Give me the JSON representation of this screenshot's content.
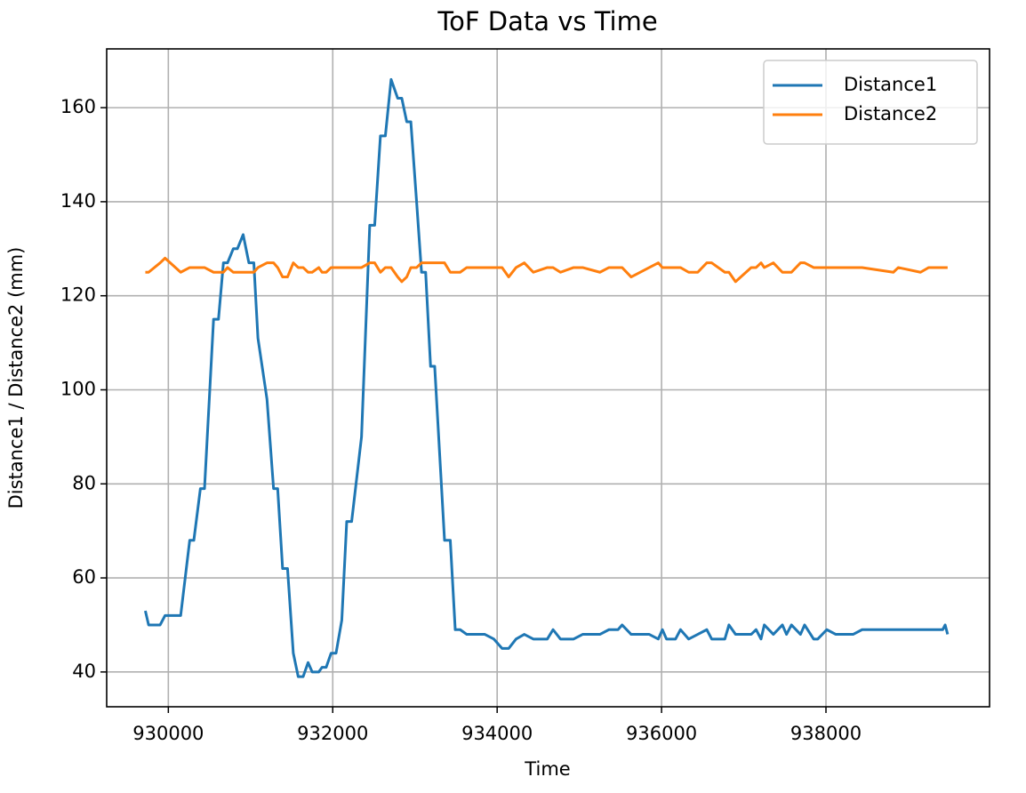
{
  "chart_data": {
    "type": "line",
    "title": "ToF Data vs Time",
    "xlabel": "Time",
    "ylabel": "Distance1 / Distance2 (mm)",
    "x": [
      929720,
      929760,
      929900,
      929960,
      930150,
      930260,
      930310,
      930390,
      930440,
      930550,
      930610,
      930670,
      930720,
      930790,
      930840,
      930910,
      930980,
      931040,
      931090,
      931200,
      931280,
      931330,
      931390,
      931450,
      931520,
      931580,
      931640,
      931700,
      931750,
      931830,
      931870,
      931920,
      931980,
      932040,
      932110,
      932170,
      932230,
      932350,
      932450,
      932510,
      932580,
      932640,
      932710,
      932790,
      932840,
      932900,
      932950,
      933020,
      933080,
      933130,
      933190,
      933240,
      933360,
      933430,
      933490,
      933550,
      933630,
      933850,
      933960,
      934060,
      934140,
      934230,
      934330,
      934440,
      934610,
      934680,
      934770,
      934930,
      935040,
      935250,
      935360,
      935470,
      935520,
      935630,
      935850,
      935960,
      936010,
      936060,
      936170,
      936230,
      936330,
      936440,
      936550,
      936610,
      936770,
      936820,
      936900,
      937090,
      937150,
      937210,
      937250,
      937360,
      937470,
      937520,
      937580,
      937690,
      937740,
      937850,
      937900,
      938010,
      938120,
      938330,
      938440,
      938820,
      938880,
      939150,
      939250,
      939420,
      939450,
      939480
    ],
    "series": [
      {
        "name": "Distance1",
        "color": "#1f77b4",
        "values": [
          53,
          50,
          50,
          52,
          52,
          68,
          68,
          79,
          79,
          115,
          115,
          127,
          127,
          130,
          130,
          133,
          127,
          127,
          111,
          98,
          79,
          79,
          62,
          62,
          44,
          39,
          39,
          42,
          40,
          40,
          41,
          41,
          44,
          44,
          51,
          72,
          72,
          90,
          135,
          135,
          154,
          154,
          166,
          162,
          162,
          157,
          157,
          140,
          125,
          125,
          105,
          105,
          68,
          68,
          49,
          49,
          48,
          48,
          47,
          45,
          45,
          47,
          48,
          47,
          47,
          49,
          47,
          47,
          48,
          48,
          49,
          49,
          50,
          48,
          48,
          47,
          49,
          47,
          47,
          49,
          47,
          48,
          49,
          47,
          47,
          50,
          48,
          48,
          49,
          47,
          50,
          48,
          50,
          48,
          50,
          48,
          50,
          47,
          47,
          49,
          48,
          48,
          49,
          49,
          49,
          49,
          49,
          49,
          50,
          48
        ]
      },
      {
        "name": "Distance2",
        "color": "#ff7f0e",
        "values": [
          125,
          125,
          127,
          128,
          125,
          126,
          126,
          126,
          126,
          125,
          125,
          125,
          126,
          125,
          125,
          125,
          125,
          125,
          126,
          127,
          127,
          126,
          124,
          124,
          127,
          126,
          126,
          125,
          125,
          126,
          125,
          125,
          126,
          126,
          126,
          126,
          126,
          126,
          127,
          127,
          125,
          126,
          126,
          124,
          123,
          124,
          126,
          126,
          127,
          127,
          127,
          127,
          127,
          125,
          125,
          125,
          126,
          126,
          126,
          126,
          124,
          126,
          127,
          125,
          126,
          126,
          125,
          126,
          126,
          125,
          126,
          126,
          126,
          124,
          126,
          127,
          126,
          126,
          126,
          126,
          125,
          125,
          127,
          127,
          125,
          125,
          123,
          126,
          126,
          127,
          126,
          127,
          125,
          125,
          125,
          127,
          127,
          126,
          126,
          126,
          126,
          126,
          126,
          125,
          126,
          125,
          126,
          126,
          126,
          126
        ]
      }
    ],
    "xlim": [
      929250,
      939990
    ],
    "xticks": [
      930000,
      932000,
      934000,
      936000,
      938000
    ],
    "ylim": [
      32.6,
      172.5
    ],
    "yticks": [
      40,
      60,
      80,
      100,
      120,
      140,
      160
    ],
    "grid": true,
    "legend": "upper right"
  }
}
